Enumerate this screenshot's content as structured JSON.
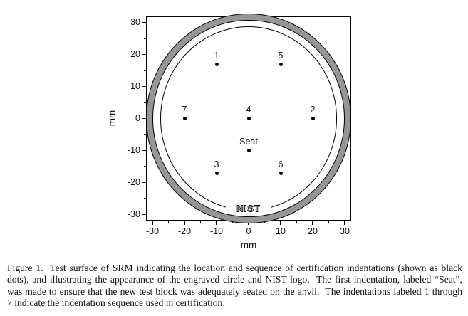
{
  "figure": {
    "caption_lines": [
      "Figure 1.  Test surface of SRM indicating the location and sequence of certification indentations (shown as black",
      "dots), and illustrating the appearance of the engraved circle and NIST logo.  The first indentation, labeled “Seat”,",
      "was made to ensure that the new test block was adequately seated on the anvil.  The indentations labeled 1 through",
      "7 indicate the indentation sequence used in certification."
    ]
  },
  "chart_data": {
    "type": "scatter",
    "title": "",
    "xlabel": "mm",
    "ylabel": "mm",
    "xlim": [
      -32,
      32
    ],
    "ylim": [
      -32,
      32
    ],
    "x_major_ticks": [
      -30,
      -20,
      -10,
      0,
      10,
      20,
      30
    ],
    "y_major_ticks": [
      -30,
      -20,
      -10,
      0,
      10,
      20,
      30
    ],
    "minor_ticks_between_majors": true,
    "minor_tick_interval": 5,
    "grid": false,
    "points": [
      {
        "label": "1",
        "x": -10,
        "y": 17
      },
      {
        "label": "5",
        "x": 10,
        "y": 17
      },
      {
        "label": "7",
        "x": -20,
        "y": 0
      },
      {
        "label": "4",
        "x": 0,
        "y": 0
      },
      {
        "label": "2",
        "x": 20,
        "y": 0
      },
      {
        "label": "Seat",
        "x": 0,
        "y": -10
      },
      {
        "label": "3",
        "x": -10,
        "y": -17
      },
      {
        "label": "6",
        "x": 10,
        "y": -17
      }
    ],
    "block_edge_ring": {
      "rx_mm": 31.9,
      "ry_mm": 32.8,
      "band_width_mm": 2.0,
      "fill": "#969696",
      "stroke": "#000000"
    },
    "engraved_circle": {
      "rx_mm": 27.6,
      "ry_mm": 28.8,
      "stroke": "#000000"
    },
    "logo": {
      "text": "NIST",
      "x_mm": 0,
      "y_mm": -28
    },
    "colors": {
      "axis": "#000000",
      "point": "#000000",
      "background": "#ffffff"
    }
  }
}
